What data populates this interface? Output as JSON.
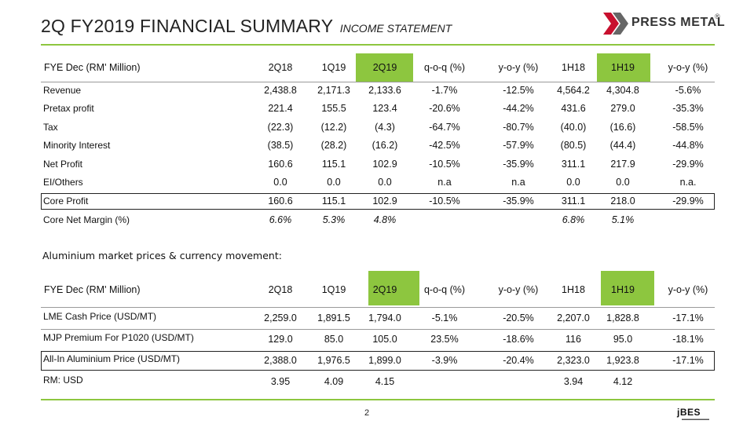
{
  "header": {
    "title": "2Q FY2019 FINANCIAL SUMMARY",
    "subtitle": "INCOME STATEMENT"
  },
  "logo": {
    "text": "PRESS METAL",
    "registered": "®",
    "icon": "press-metal-chevron-logo"
  },
  "income": {
    "header_label": "FYE Dec  (RM' Million)",
    "columns": [
      "2Q18",
      "1Q19",
      "2Q19",
      "q-o-q  (%)",
      "y-o-y  (%)",
      "1H18",
      "1H19",
      "y-o-y  (%)"
    ],
    "rows": [
      {
        "label": "Revenue",
        "values": [
          "2,438.8",
          "2,171.3",
          "2,133.6",
          "-1.7%",
          "-12.5%",
          "4,564.2",
          "4,304.8",
          "-5.6%"
        ]
      },
      {
        "label": "Pretax profit",
        "values": [
          "221.4",
          "155.5",
          "123.4",
          "-20.6%",
          "-44.2%",
          "431.6",
          "279.0",
          "-35.3%"
        ]
      },
      {
        "label": "Tax",
        "values": [
          "(22.3)",
          "(12.2)",
          "(4.3)",
          "-64.7%",
          "-80.7%",
          "(40.0)",
          "(16.6)",
          "-58.5%"
        ]
      },
      {
        "label": "Minority Interest",
        "values": [
          "(38.5)",
          "(28.2)",
          "(16.2)",
          "-42.5%",
          "-57.9%",
          "(80.5)",
          "(44.4)",
          "-44.8%"
        ]
      },
      {
        "label": "Net Profit",
        "values": [
          "160.6",
          "115.1",
          "102.9",
          "-10.5%",
          "-35.9%",
          "311.1",
          "217.9",
          "-29.9%"
        ]
      },
      {
        "label": "EI/Others",
        "values": [
          "0.0",
          "0.0",
          "0.0",
          "n.a",
          "n.a",
          "0.0",
          "0.0",
          "n.a."
        ]
      },
      {
        "label": "Core Profit",
        "values": [
          "160.6",
          "115.1",
          "102.9",
          "-10.5%",
          "-35.9%",
          "311.1",
          "218.0",
          "-29.9%"
        ]
      },
      {
        "label": "Core Net Margin (%)",
        "values": [
          "6.6%",
          "5.3%",
          "4.8%",
          "",
          "",
          "6.8%",
          "5.1%",
          ""
        ]
      }
    ]
  },
  "aluminium": {
    "section_title": "Aluminium market prices & currency movement:",
    "header_label": "FYE Dec  (RM' Million)",
    "columns": [
      "2Q18",
      "1Q19",
      "2Q19",
      "q-o-q  (%)",
      "y-o-y (%)",
      "1H18",
      "1H19",
      "y-o-y  (%)"
    ],
    "rows": [
      {
        "label": "LME Cash Price (USD/MT)",
        "values": [
          "2,259.0",
          "1,891.5",
          "1,794.0",
          "-5.1%",
          "-20.5%",
          "2,207.0",
          "1,828.8",
          "-17.1%"
        ]
      },
      {
        "label": "MJP Premium For P1020 (USD/MT)",
        "values": [
          "129.0",
          "85.0",
          "105.0",
          "23.5%",
          "-18.6%",
          "116",
          "95.0",
          "-18.1%"
        ]
      },
      {
        "label": "All-In Aluminium Price (USD/MT)",
        "values": [
          "2,388.0",
          "1,976.5",
          "1,899.0",
          "-3.9%",
          "-20.4%",
          "2,323.0",
          "1,923.8",
          "-17.1%"
        ]
      },
      {
        "label": "RM: USD",
        "values": [
          "3.95",
          "4.09",
          "4.15",
          "",
          "",
          "3.94",
          "4.12",
          ""
        ]
      }
    ]
  },
  "footer": {
    "page": "2",
    "brand": "jBES"
  },
  "colors": {
    "accent_green": "#8dc63f",
    "logo_red": "#c8102e",
    "logo_gray": "#555555"
  }
}
